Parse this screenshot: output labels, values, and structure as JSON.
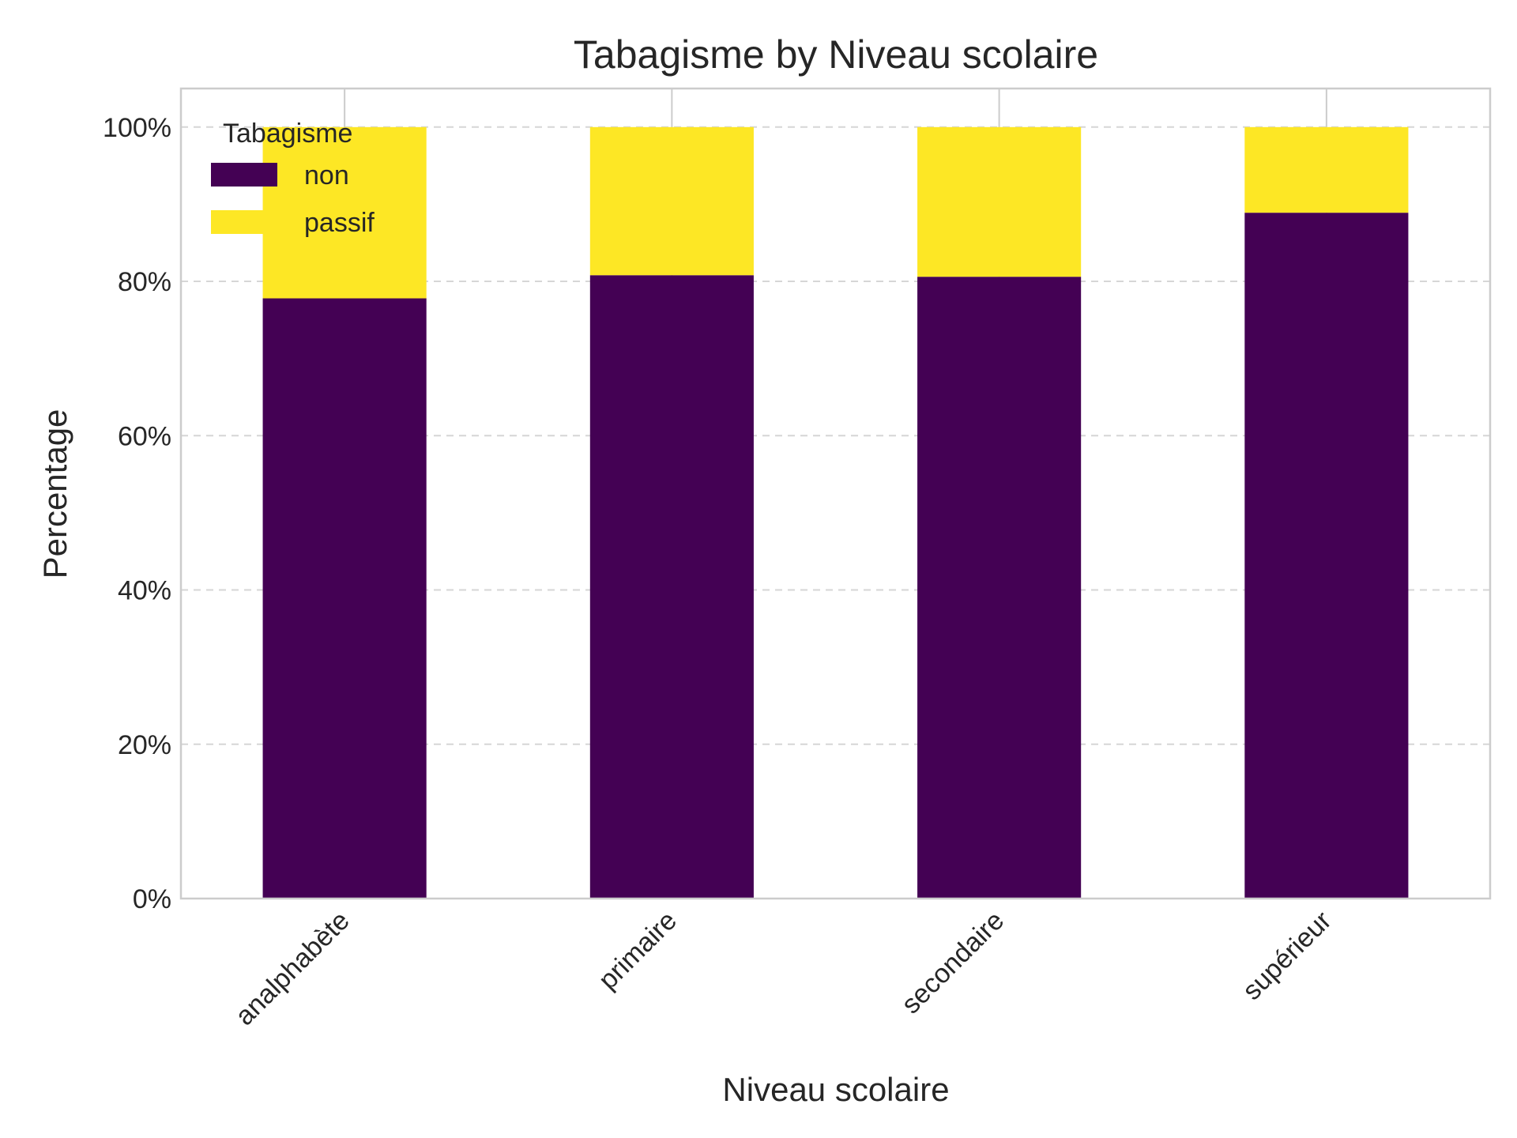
{
  "chart_data": {
    "type": "bar",
    "stacked": true,
    "title": "Tabagisme by Niveau scolaire",
    "xlabel": "Niveau scolaire",
    "ylabel": "Percentage",
    "categories": [
      "analphabète",
      "primaire",
      "secondaire",
      "supérieur"
    ],
    "series": [
      {
        "name": "non",
        "color": "#440154",
        "values": [
          77.8,
          80.8,
          80.6,
          88.9
        ]
      },
      {
        "name": "passif",
        "color": "#fde725",
        "values": [
          22.2,
          19.2,
          19.4,
          11.1
        ]
      }
    ],
    "ylim": [
      0,
      105
    ],
    "yticks": [
      0,
      20,
      40,
      60,
      80,
      100
    ],
    "ytick_labels": [
      "0%",
      "20%",
      "40%",
      "60%",
      "80%",
      "100%"
    ],
    "grid": {
      "y": true,
      "x": true
    },
    "legend": {
      "title": "Tabagisme",
      "placement": "top-left"
    }
  }
}
